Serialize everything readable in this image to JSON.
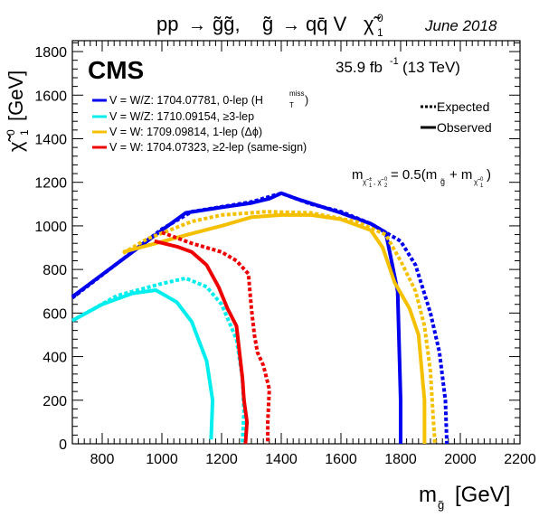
{
  "chart_data": {
    "type": "line",
    "title": "pp → g̃g̃,  g̃ → qq̄ V χ̃₁⁰",
    "date": "June 2018",
    "experiment": "CMS",
    "luminosity": "35.9 fb⁻¹ (13 TeV)",
    "xlabel": "mɡ̃ [GeV]",
    "ylabel": "χ̃₁⁰ [GeV]",
    "xlim": [
      700,
      2200
    ],
    "ylim": [
      0,
      1850
    ],
    "xticks": [
      800,
      1000,
      1200,
      1400,
      1600,
      1800,
      2000,
      2200
    ],
    "yticks": [
      0,
      200,
      400,
      600,
      800,
      1000,
      1200,
      1400,
      1600,
      1800
    ],
    "mass_relation": "mχ̃±₁, χ̃⁰₂ = 0.5(mɡ̃ + mχ̃⁰₁)",
    "style_legend": [
      {
        "label": "Expected",
        "dash": true
      },
      {
        "label": "Observed",
        "dash": false
      }
    ],
    "series": [
      {
        "name": "V = W/Z: 1704.07781, 0-lep (Hᵀᵐⁱˢˢ)",
        "color": "#0000ee",
        "observed": [
          [
            700,
            675
          ],
          [
            1000,
            980
          ],
          [
            1080,
            1060
          ],
          [
            1200,
            1085
          ],
          [
            1300,
            1105
          ],
          [
            1360,
            1125
          ],
          [
            1400,
            1150
          ],
          [
            1450,
            1125
          ],
          [
            1600,
            1060
          ],
          [
            1700,
            1010
          ],
          [
            1750,
            970
          ],
          [
            1790,
            700
          ],
          [
            1800,
            200
          ],
          [
            1800,
            0
          ]
        ],
        "expected": [
          [
            700,
            670
          ],
          [
            1000,
            985
          ],
          [
            1100,
            1065
          ],
          [
            1300,
            1110
          ],
          [
            1400,
            1150
          ],
          [
            1500,
            1100
          ],
          [
            1600,
            1065
          ],
          [
            1700,
            1010
          ],
          [
            1800,
            930
          ],
          [
            1850,
            820
          ],
          [
            1900,
            600
          ],
          [
            1930,
            420
          ],
          [
            1950,
            200
          ],
          [
            1955,
            0
          ]
        ]
      },
      {
        "name": "V = W/Z: 1710.09154, ≥3-lep",
        "color": "#00eeee",
        "observed": [
          [
            700,
            565
          ],
          [
            800,
            640
          ],
          [
            900,
            690
          ],
          [
            980,
            705
          ],
          [
            1050,
            650
          ],
          [
            1100,
            560
          ],
          [
            1150,
            380
          ],
          [
            1170,
            200
          ],
          [
            1165,
            20
          ]
        ],
        "expected": [
          [
            700,
            565
          ],
          [
            850,
            680
          ],
          [
            1000,
            735
          ],
          [
            1080,
            760
          ],
          [
            1150,
            720
          ],
          [
            1200,
            640
          ],
          [
            1250,
            480
          ],
          [
            1270,
            300
          ],
          [
            1275,
            150
          ],
          [
            1270,
            0
          ]
        ]
      },
      {
        "name": "V = W: 1709.09814, 1-lep (Δφ)",
        "color": "#f5c000",
        "observed": [
          [
            870,
            880
          ],
          [
            980,
            920
          ],
          [
            1100,
            965
          ],
          [
            1200,
            1000
          ],
          [
            1300,
            1040
          ],
          [
            1400,
            1050
          ],
          [
            1500,
            1050
          ],
          [
            1600,
            1030
          ],
          [
            1700,
            980
          ],
          [
            1740,
            900
          ],
          [
            1780,
            740
          ],
          [
            1830,
            620
          ],
          [
            1860,
            500
          ],
          [
            1880,
            200
          ],
          [
            1880,
            0
          ]
        ],
        "expected": [
          [
            870,
            875
          ],
          [
            950,
            940
          ],
          [
            1100,
            1020
          ],
          [
            1200,
            1050
          ],
          [
            1350,
            1065
          ],
          [
            1500,
            1060
          ],
          [
            1650,
            1020
          ],
          [
            1750,
            960
          ],
          [
            1800,
            840
          ],
          [
            1850,
            700
          ],
          [
            1880,
            540
          ],
          [
            1900,
            330
          ],
          [
            1910,
            100
          ],
          [
            1915,
            0
          ]
        ]
      },
      {
        "name": "V = W: 1704.07323, ≥2-lep (same-sign)",
        "color": "#ee0000",
        "observed": [
          [
            975,
            930
          ],
          [
            1050,
            905
          ],
          [
            1100,
            880
          ],
          [
            1150,
            820
          ],
          [
            1190,
            720
          ],
          [
            1220,
            620
          ],
          [
            1250,
            540
          ],
          [
            1260,
            420
          ],
          [
            1270,
            300
          ],
          [
            1275,
            200
          ],
          [
            1285,
            100
          ],
          [
            1280,
            0
          ]
        ],
        "expected": [
          [
            1000,
            970
          ],
          [
            1100,
            920
          ],
          [
            1200,
            880
          ],
          [
            1250,
            840
          ],
          [
            1290,
            780
          ],
          [
            1300,
            620
          ],
          [
            1310,
            500
          ],
          [
            1320,
            420
          ],
          [
            1340,
            360
          ],
          [
            1360,
            250
          ],
          [
            1355,
            100
          ],
          [
            1355,
            0
          ]
        ]
      }
    ]
  }
}
